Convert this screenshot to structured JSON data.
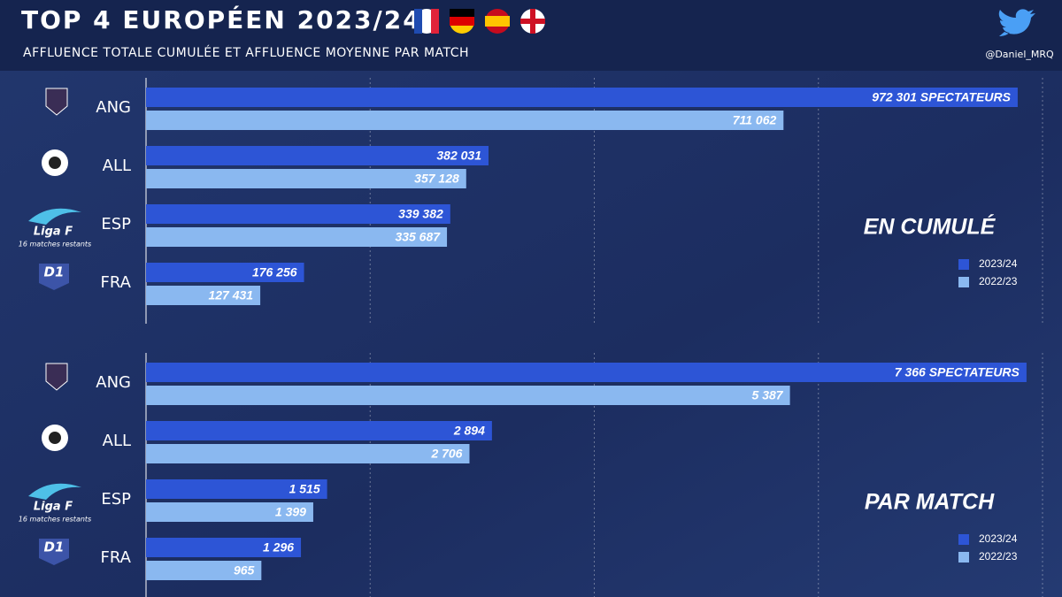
{
  "title": "TOP 4 EUROPÉEN 2023/24",
  "subtitle": "AFFLUENCE TOTALE CUMULÉE ET AFFLUENCE MOYENNE PAR MATCH",
  "author": "@Daniel_MRQ",
  "logos": [
    "Liga F",
    "D1"
  ],
  "chart_data": [
    {
      "type": "bar",
      "orientation": "horizontal",
      "label": "EN CUMULÉ",
      "categories": [
        "ANG",
        "ALL",
        "ESP",
        "FRA"
      ],
      "note": "16 matches restants",
      "xlim": [
        0,
        1000000
      ],
      "series": [
        {
          "name": "2023/24",
          "color": "#2d55d6",
          "values": [
            972301,
            382031,
            339382,
            176256
          ],
          "value_labels": [
            "972 301 SPECTATEURS",
            "382 031",
            "339 382",
            "176 256"
          ]
        },
        {
          "name": "2022/23",
          "color": "#8ab8f0",
          "values": [
            711062,
            357128,
            335687,
            127431
          ],
          "value_labels": [
            "711 062",
            "357 128",
            "335 687",
            "127 431"
          ]
        }
      ]
    },
    {
      "type": "bar",
      "orientation": "horizontal",
      "label": "PAR MATCH",
      "categories": [
        "ANG",
        "ALL",
        "ESP",
        "FRA"
      ],
      "note": "16 matches restants",
      "xlim": [
        0,
        7500
      ],
      "series": [
        {
          "name": "2023/24",
          "color": "#2d55d6",
          "values": [
            7366,
            2894,
            1515,
            1296
          ],
          "value_labels": [
            "7 366 SPECTATEURS",
            "2 894",
            "1 515",
            "1 296"
          ]
        },
        {
          "name": "2022/23",
          "color": "#8ab8f0",
          "values": [
            5387,
            2706,
            1399,
            965
          ],
          "value_labels": [
            "5 387",
            "2 706",
            "1 399",
            "965"
          ]
        }
      ]
    }
  ]
}
